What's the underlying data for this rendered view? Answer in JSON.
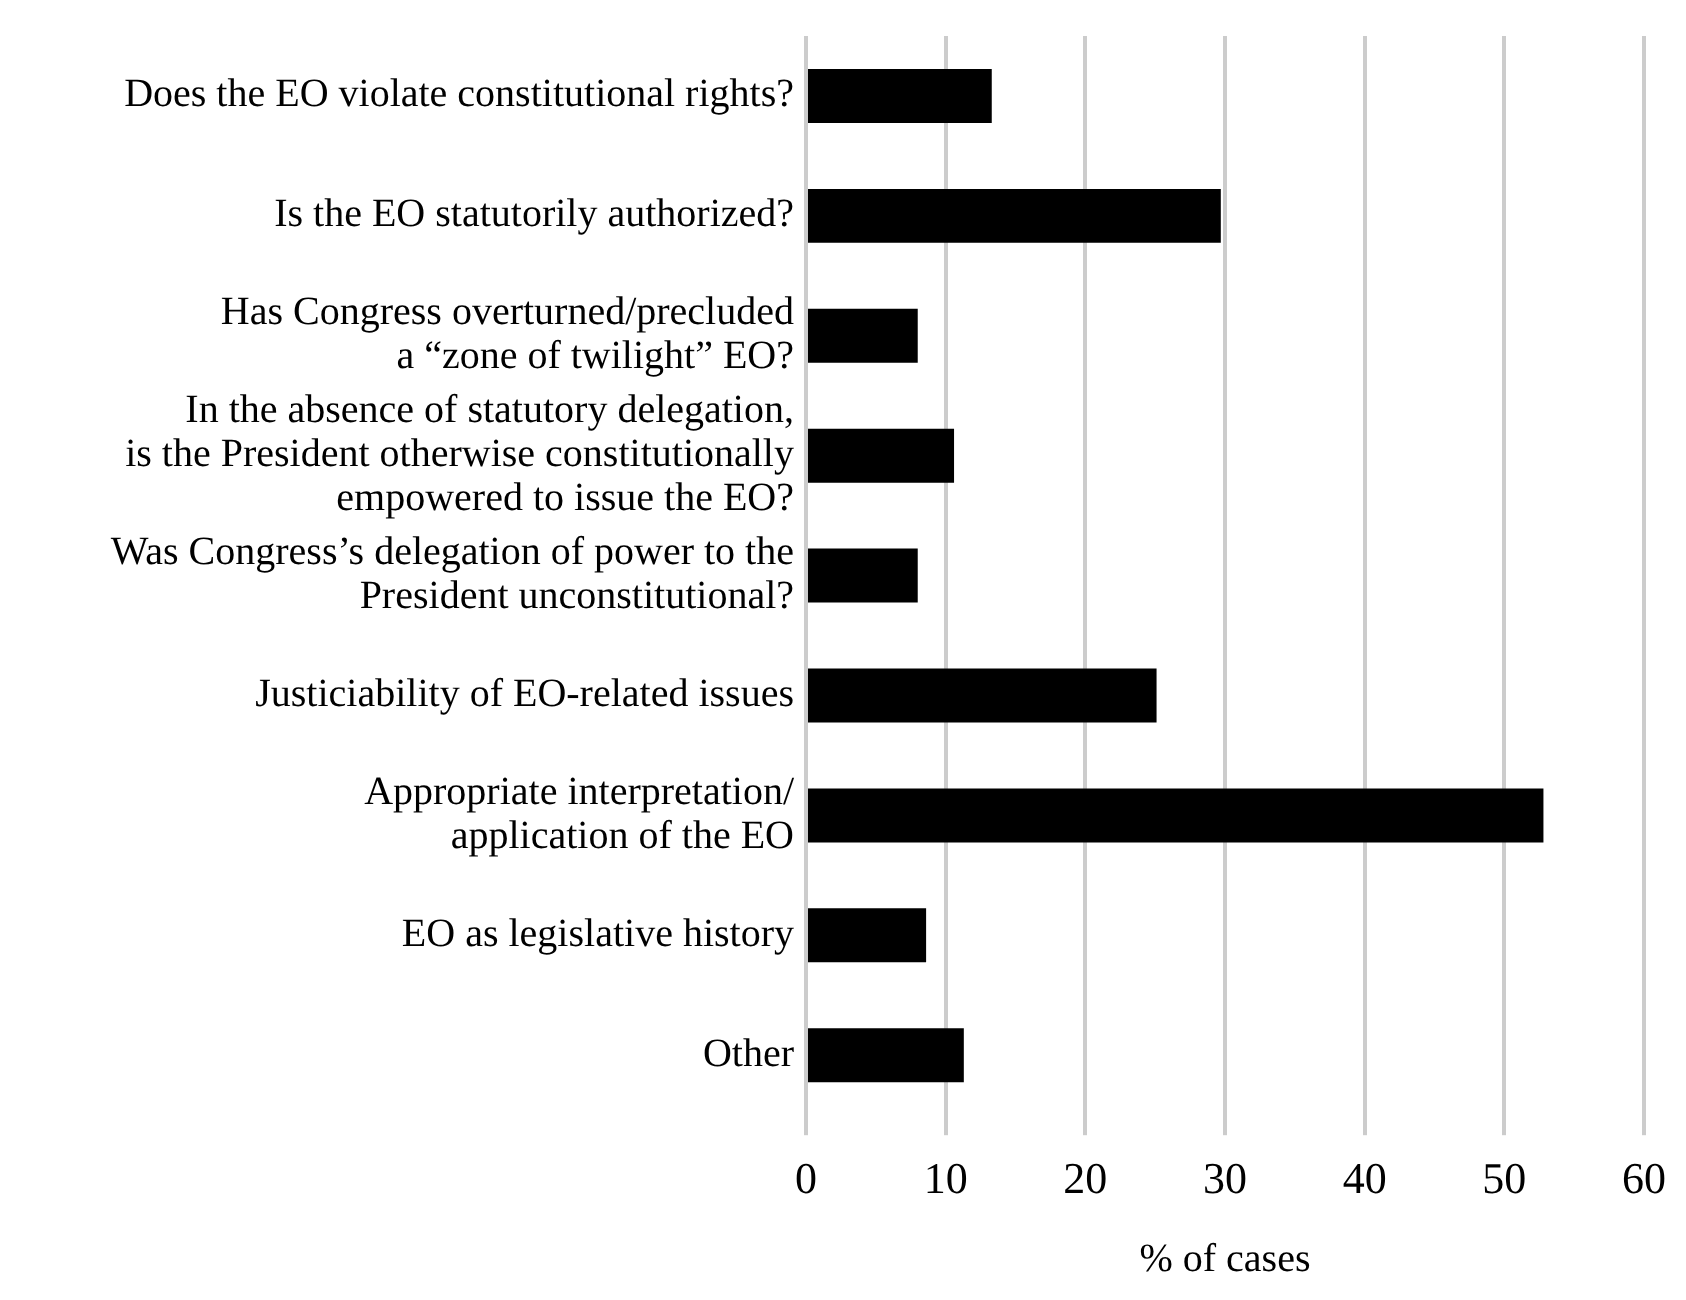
{
  "chart_data": {
    "type": "bar",
    "orientation": "horizontal",
    "xlabel": "% of cases",
    "categories": [
      "Does the EO violate constitutional rights?",
      "Is the EO statutorily authorized?",
      "Has Congress overturned/precluded\na “zone of twilight” EO?",
      "In the absence of statutory delegation,\nis the President otherwise constitutionally\nempowered to issue the EO?",
      "Was Congress’s delegation of power to the\nPresident unconstitutional?",
      "Justiciability of EO-related issues",
      "Appropriate interpretation/\napplication of the EO",
      "EO as legislative history",
      "Other"
    ],
    "values": [
      13.3,
      29.7,
      8.0,
      10.6,
      8.0,
      25.1,
      52.8,
      8.6,
      11.3
    ],
    "color": "#000000",
    "xlim": [
      0,
      60
    ],
    "xticks": [
      0,
      10,
      20,
      30,
      40,
      50,
      60
    ],
    "grid": "x"
  }
}
